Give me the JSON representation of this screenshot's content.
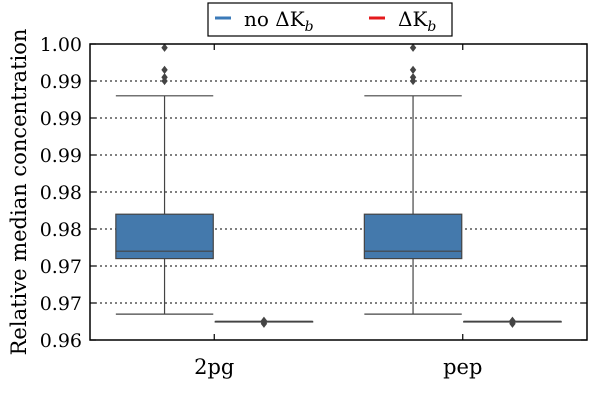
{
  "chart_data": {
    "type": "box",
    "categories": [
      "2pg",
      "pep"
    ],
    "ylabel": "Relative median concentration",
    "xlabel": "",
    "ylim": [
      0.96,
      1.0
    ],
    "yticks": [
      0.96,
      0.965,
      0.97,
      0.975,
      0.98,
      0.985,
      0.99,
      0.995,
      1.0
    ],
    "ytick_labels": [
      "0.96",
      "0.97",
      "0.97",
      "0.98",
      "0.98",
      "0.99",
      "0.99",
      "0.99",
      "1.00"
    ],
    "grid": "horizontal dotted",
    "legend": {
      "placement": "top-center",
      "entries": [
        {
          "label_main": "no ΔK",
          "label_sub": "b",
          "color": "#3b7ab8"
        },
        {
          "label_main": "ΔK",
          "label_sub": "b",
          "color": "#e41a1c"
        }
      ]
    },
    "series": [
      {
        "name": "no ΔKb",
        "color": "#4479ac",
        "boxes": [
          {
            "whisker_low": 0.9635,
            "q1": 0.971,
            "median": 0.972,
            "q3": 0.977,
            "whisker_high": 0.993,
            "outliers": [
              0.995,
              0.9955,
              0.9965,
              0.9995
            ]
          },
          {
            "whisker_low": 0.9635,
            "q1": 0.971,
            "median": 0.972,
            "q3": 0.977,
            "whisker_high": 0.993,
            "outliers": [
              0.995,
              0.9955,
              0.9965,
              0.9995
            ]
          }
        ]
      },
      {
        "name": "ΔKb",
        "color": "#e41a1c",
        "boxes": [
          {
            "whisker_low": 0.9625,
            "q1": 0.9625,
            "median": 0.9625,
            "q3": 0.9625,
            "whisker_high": 0.9625,
            "outliers": [
              0.9622,
              0.9624,
              0.9626
            ]
          },
          {
            "whisker_low": 0.9625,
            "q1": 0.9625,
            "median": 0.9625,
            "q3": 0.9625,
            "whisker_high": 0.9625,
            "outliers": [
              0.9622,
              0.9624,
              0.9626
            ]
          }
        ]
      }
    ]
  }
}
